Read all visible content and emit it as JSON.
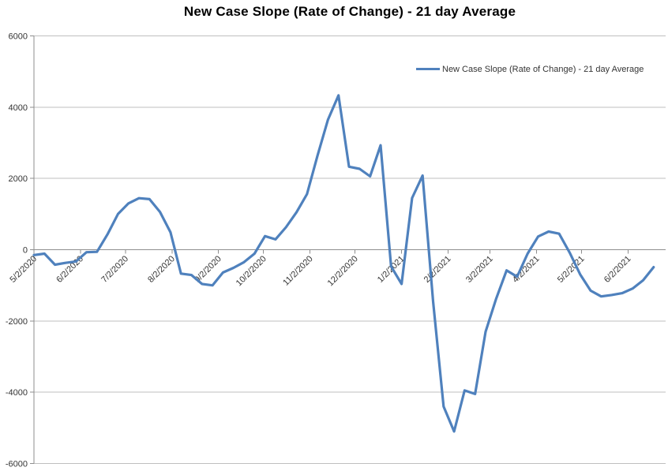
{
  "chart": {
    "title": "New Case Slope (Rate of Change) - 21 day Average",
    "legend": {
      "label": "New Case Slope (Rate of Change) - 21 day Average"
    },
    "colors": {
      "line": "#4F81BD",
      "gridline": "#BFBFBF",
      "axis": "#8E8E8E",
      "tick_text": "#343434",
      "title_text": "#000000",
      "background": "#FFFFFF"
    }
  },
  "chart_data": {
    "type": "line",
    "title": "New Case Slope (Rate of Change) - 21 day Average",
    "grid": true,
    "legend_position": "top-right",
    "x_axis_label_rotation": -45,
    "ylim": [
      -6000,
      6000
    ],
    "yticks": [
      6000,
      4000,
      2000,
      0,
      -2000,
      -4000,
      -6000
    ],
    "xticks": [
      "5/2/2020",
      "6/2/2020",
      "7/2/2020",
      "8/2/2020",
      "9/2/2020",
      "10/2/2020",
      "11/2/2020",
      "12/2/2020",
      "1/2/2021",
      "2/2/2021",
      "3/2/2021",
      "4/2/2021",
      "5/2/2021",
      "6/2/2021"
    ],
    "xlim_dates": [
      "5/2/2020",
      "6/27/2021"
    ],
    "series": [
      {
        "name": "New Case Slope (Rate of Change) - 21 day Average",
        "color": "#4F81BD",
        "x": [
          "5/2/2020",
          "5/9/2020",
          "5/16/2020",
          "5/23/2020",
          "5/30/2020",
          "6/6/2020",
          "6/13/2020",
          "6/20/2020",
          "6/27/2020",
          "7/4/2020",
          "7/11/2020",
          "7/18/2020",
          "7/25/2020",
          "8/1/2020",
          "8/8/2020",
          "8/15/2020",
          "8/22/2020",
          "8/29/2020",
          "9/5/2020",
          "9/12/2020",
          "9/19/2020",
          "9/26/2020",
          "10/3/2020",
          "10/10/2020",
          "10/17/2020",
          "10/24/2020",
          "10/31/2020",
          "11/7/2020",
          "11/14/2020",
          "11/21/2020",
          "11/28/2020",
          "12/5/2020",
          "12/12/2020",
          "12/19/2020",
          "12/26/2020",
          "1/2/2021",
          "1/9/2021",
          "1/16/2021",
          "1/23/2021",
          "1/30/2021",
          "2/6/2021",
          "2/13/2021",
          "2/20/2021",
          "2/27/2021",
          "3/6/2021",
          "3/13/2021",
          "3/20/2021",
          "3/27/2021",
          "4/3/2021",
          "4/10/2021",
          "4/17/2021",
          "4/24/2021",
          "5/1/2021",
          "5/8/2021",
          "5/15/2021",
          "5/22/2021",
          "5/29/2021",
          "6/5/2021",
          "6/12/2021",
          "6/19/2021"
        ],
        "values": [
          -150,
          -110,
          -420,
          -370,
          -330,
          -70,
          -60,
          430,
          1000,
          1300,
          1445,
          1420,
          1060,
          490,
          -670,
          -710,
          -960,
          -1000,
          -640,
          -510,
          -350,
          -110,
          380,
          290,
          630,
          1050,
          1560,
          2640,
          3650,
          4330,
          2330,
          2270,
          2060,
          2930,
          -470,
          -960,
          1450,
          2080,
          -1450,
          -4400,
          -5100,
          -3950,
          -4050,
          -2300,
          -1380,
          -580,
          -760,
          -110,
          370,
          510,
          450,
          -80,
          -690,
          -1150,
          -1310,
          -1270,
          -1220,
          -1090,
          -860,
          -490
        ]
      }
    ]
  }
}
